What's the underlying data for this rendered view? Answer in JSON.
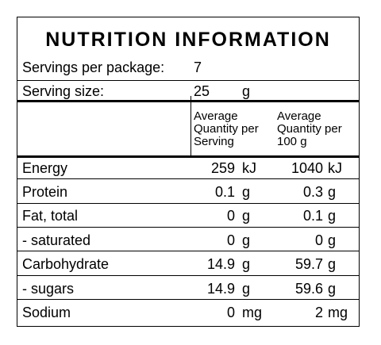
{
  "title": "NUTRITION INFORMATION",
  "servings_per_package": {
    "label": "Servings per package:",
    "value": "7"
  },
  "serving_size": {
    "label": "Serving size:",
    "value": "25",
    "unit": "g"
  },
  "columns": {
    "per_serving": [
      "Average",
      "Quantity per",
      "Serving"
    ],
    "per_100g": [
      "Average",
      "Quantity per",
      "100 g"
    ]
  },
  "rows": [
    {
      "name": "Energy",
      "serving": "259",
      "serving_unit": "kJ",
      "per100": "1040",
      "per100_unit": "kJ"
    },
    {
      "name": "Protein",
      "serving": "0.1",
      "serving_unit": "g",
      "per100": "0.3",
      "per100_unit": "g"
    },
    {
      "name": "Fat, total",
      "serving": "0",
      "serving_unit": "g",
      "per100": "0.1",
      "per100_unit": "g"
    },
    {
      "name": "- saturated",
      "serving": "0",
      "serving_unit": "g",
      "per100": "0",
      "per100_unit": "g"
    },
    {
      "name": "Carbohydrate",
      "serving": "14.9",
      "serving_unit": "g",
      "per100": "59.7",
      "per100_unit": "g"
    },
    {
      "name": "- sugars",
      "serving": "14.9",
      "serving_unit": "g",
      "per100": "59.6",
      "per100_unit": "g"
    },
    {
      "name": "Sodium",
      "serving": "0",
      "serving_unit": "mg",
      "per100": "2",
      "per100_unit": "mg"
    }
  ]
}
